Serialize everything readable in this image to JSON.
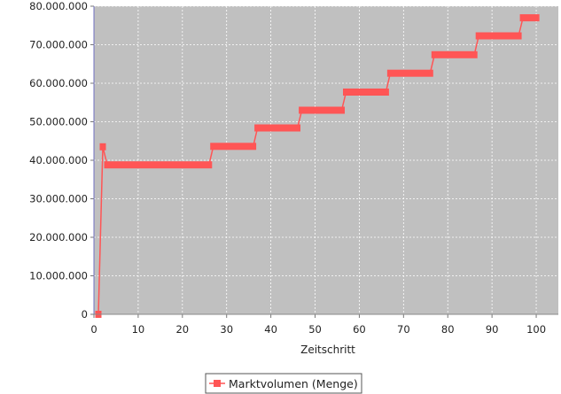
{
  "chart_data": {
    "type": "line",
    "title": "",
    "xlabel": "Zeitschritt",
    "ylabel": "",
    "xlim": [
      0,
      105
    ],
    "ylim": [
      0,
      80000000
    ],
    "x_ticks": [
      0,
      10,
      20,
      30,
      40,
      50,
      60,
      70,
      80,
      90,
      100
    ],
    "x_tick_labels": [
      "0",
      "10",
      "20",
      "30",
      "40",
      "50",
      "60",
      "70",
      "80",
      "90",
      "100"
    ],
    "y_ticks": [
      0,
      10000000,
      20000000,
      30000000,
      40000000,
      50000000,
      60000000,
      70000000,
      80000000
    ],
    "y_tick_labels": [
      "0",
      "10.000.000",
      "20.000.000",
      "30.000.000",
      "40.000.000",
      "50.000.000",
      "60.000.000",
      "70.000.000",
      "80.000.000"
    ],
    "grid": true,
    "legend_position": "bottom-center",
    "plot_background": "#c0c0c0",
    "series": [
      {
        "name": "Marktvolumen (Menge)",
        "color": "#ff5555",
        "marker": "square",
        "step_starts": [
          1,
          2,
          3,
          27,
          37,
          47,
          57,
          67,
          77,
          87,
          97
        ],
        "step_ends": [
          1,
          2,
          26,
          36,
          46,
          56,
          66,
          76,
          86,
          96,
          100
        ],
        "step_values": [
          0,
          43500000,
          38800000,
          43600000,
          48400000,
          53000000,
          57700000,
          62600000,
          67400000,
          72300000,
          77000000
        ]
      }
    ]
  }
}
